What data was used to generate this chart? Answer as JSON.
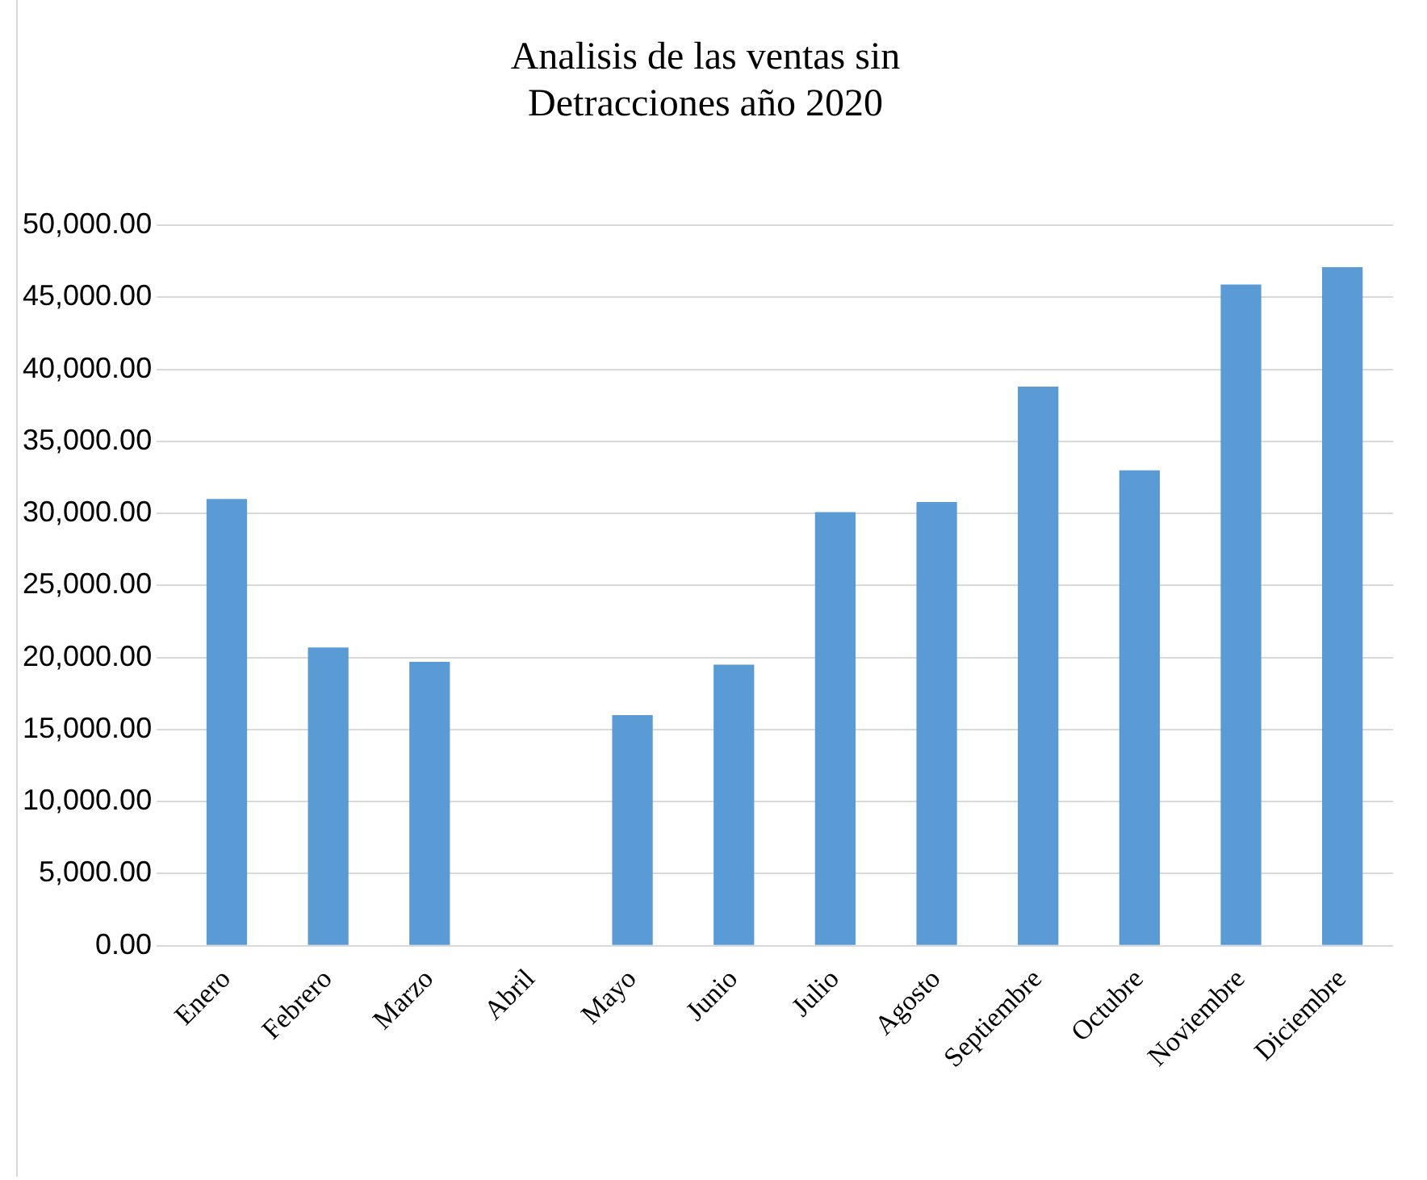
{
  "chart_data": {
    "type": "bar",
    "title": "Analisis de las ventas sin\nDetracciones año 2020",
    "categories": [
      "Enero",
      "Febrero",
      "Marzo",
      "Abril",
      "Mayo",
      "Junio",
      "Julio",
      "Agosto",
      "Septiembre",
      "Octubre",
      "Noviembre",
      "Diciembre"
    ],
    "values": [
      31000,
      20700,
      19700,
      0,
      16000,
      19500,
      30100,
      30800,
      38800,
      33000,
      45900,
      47100
    ],
    "color": "#5b9bd5",
    "ylim": [
      0,
      50000
    ],
    "yticks": [
      {
        "value": 0,
        "label": "0.00"
      },
      {
        "value": 5000,
        "label": "5,000.00"
      },
      {
        "value": 10000,
        "label": "10,000.00"
      },
      {
        "value": 15000,
        "label": "15,000.00"
      },
      {
        "value": 20000,
        "label": "20,000.00"
      },
      {
        "value": 25000,
        "label": "25,000.00"
      },
      {
        "value": 30000,
        "label": "30,000.00"
      },
      {
        "value": 35000,
        "label": "35,000.00"
      },
      {
        "value": 40000,
        "label": "40,000.00"
      },
      {
        "value": 45000,
        "label": "45,000.00"
      },
      {
        "value": 50000,
        "label": "50,000.00"
      }
    ],
    "grid": true
  }
}
